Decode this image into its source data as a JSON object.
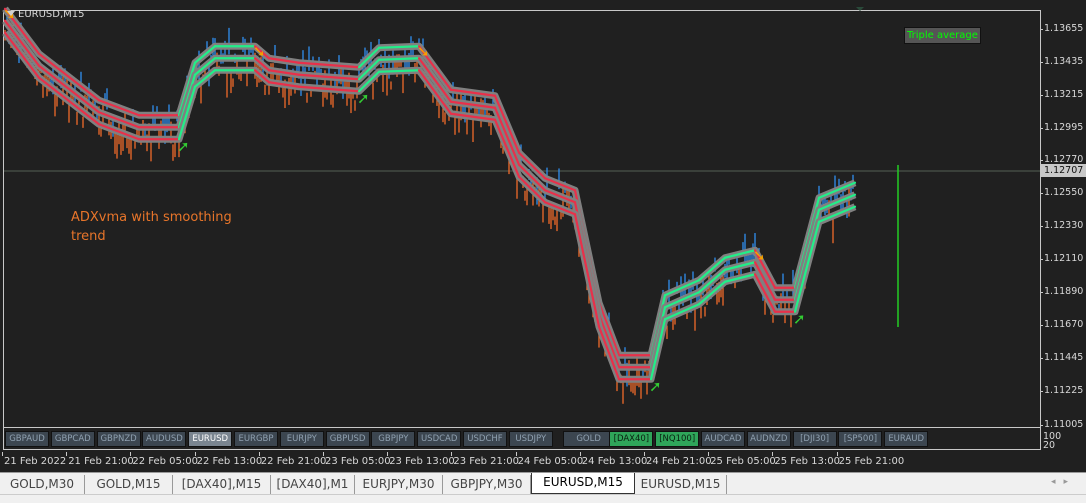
{
  "chart_title": "EURUSD,M15",
  "indicator_legend": "Triple average",
  "annotation": "ADXvma with smoothing trend",
  "colors": {
    "background": "#202020",
    "bull_bar": "#2f8ff0",
    "bear_bar": "#f06a2a",
    "band": "#808080",
    "up_line": "#22ee88",
    "down_line": "#e8304a",
    "arrow_up": "#33cc33",
    "arrow_down": "#f5a000"
  },
  "price_axis": {
    "ticks": [
      "1.13655",
      "1.13435",
      "1.13215",
      "1.12995",
      "1.12770",
      "1.12550",
      "1.12330",
      "1.12110",
      "1.11890",
      "1.11670",
      "1.11445",
      "1.11225",
      "1.11005"
    ],
    "current_price": "1.12707"
  },
  "time_axis": [
    "21 Feb 2022",
    "21 Feb 21:00",
    "22 Feb 05:00",
    "22 Feb 13:00",
    "22 Feb 21:00",
    "23 Feb 05:00",
    "23 Feb 13:00",
    "23 Feb 21:00",
    "24 Feb 05:00",
    "24 Feb 13:00",
    "24 Feb 21:00",
    "25 Feb 05:00",
    "25 Feb 13:00",
    "25 Feb 21:00"
  ],
  "chart_data": {
    "type": "line",
    "symbol": "EURUSD",
    "timeframe": "M15",
    "ylim": [
      1.11005,
      1.13655
    ],
    "series": [
      {
        "time": [
          "21 13:15",
          "21 17:30",
          "22 01:00",
          "22 06:00",
          "22 11:00",
          "22 13:00",
          "22 15:30",
          "22 20:30",
          "22 22:15",
          "23 02:00",
          "23 09:30",
          "23 12:00",
          "23 17:00",
          "23 21:00",
          "24 02:30",
          "24 05:30",
          "24 08:45",
          "24 12:30",
          "24 15:30",
          "24 18:00",
          "24 22:00",
          "24 23:45",
          "25 04:00",
          "25 07:15",
          "25 11:00",
          "25 13:30",
          "25 16:00",
          "25 19:00",
          "25 23:30"
        ],
        "price": [
          1.1371,
          1.1341,
          1.131,
          1.13,
          1.13,
          1.1335,
          1.1346,
          1.1346,
          1.1338,
          1.1335,
          1.1332,
          1.1345,
          1.1346,
          1.1317,
          1.1313,
          1.1275,
          1.1258,
          1.125,
          1.1175,
          1.114,
          1.114,
          1.118,
          1.119,
          1.1205,
          1.121,
          1.1185,
          1.1185,
          1.1245,
          1.1255
        ],
        "trend": [
          "up",
          "down",
          "down",
          "down",
          "down",
          "up",
          "up",
          "up",
          "down",
          "down",
          "down",
          "up",
          "up",
          "down",
          "down",
          "down",
          "down",
          "down",
          "down",
          "down",
          "down",
          "up",
          "up",
          "up",
          "up",
          "down",
          "down",
          "up",
          "up"
        ]
      }
    ]
  },
  "subwindow": {
    "levels": [
      "100",
      "20"
    ]
  },
  "symbols": [
    {
      "label": "GBPAUD"
    },
    {
      "label": "GBPCAD"
    },
    {
      "label": "GBPNZD"
    },
    {
      "label": "AUDUSD"
    },
    {
      "label": "EURUSD",
      "state": "sel"
    },
    {
      "label": "EURGBP"
    },
    {
      "label": "EURJPY"
    },
    {
      "label": "GBPUSD"
    },
    {
      "label": "GBPJPY"
    },
    {
      "label": "USDCAD"
    },
    {
      "label": "USDCHF"
    },
    {
      "label": "USDJPY"
    },
    {
      "label": "GOLD"
    },
    {
      "label": "[DAX40]",
      "state": "grn"
    },
    {
      "label": "[NQ100]",
      "state": "grn"
    },
    {
      "label": "AUDCAD"
    },
    {
      "label": "AUDNZD"
    },
    {
      "label": "[DJI30]"
    },
    {
      "label": "[SP500]"
    },
    {
      "label": "EURAUD"
    }
  ],
  "tabs": [
    {
      "label": "GOLD,M30"
    },
    {
      "label": "GOLD,M15"
    },
    {
      "label": "[DAX40],M15"
    },
    {
      "label": "[DAX40],M1"
    },
    {
      "label": "EURJPY,M30"
    },
    {
      "label": "GBPJPY,M30"
    },
    {
      "label": "EURUSD,M15",
      "active": true
    },
    {
      "label": "EURUSD,M15"
    }
  ]
}
